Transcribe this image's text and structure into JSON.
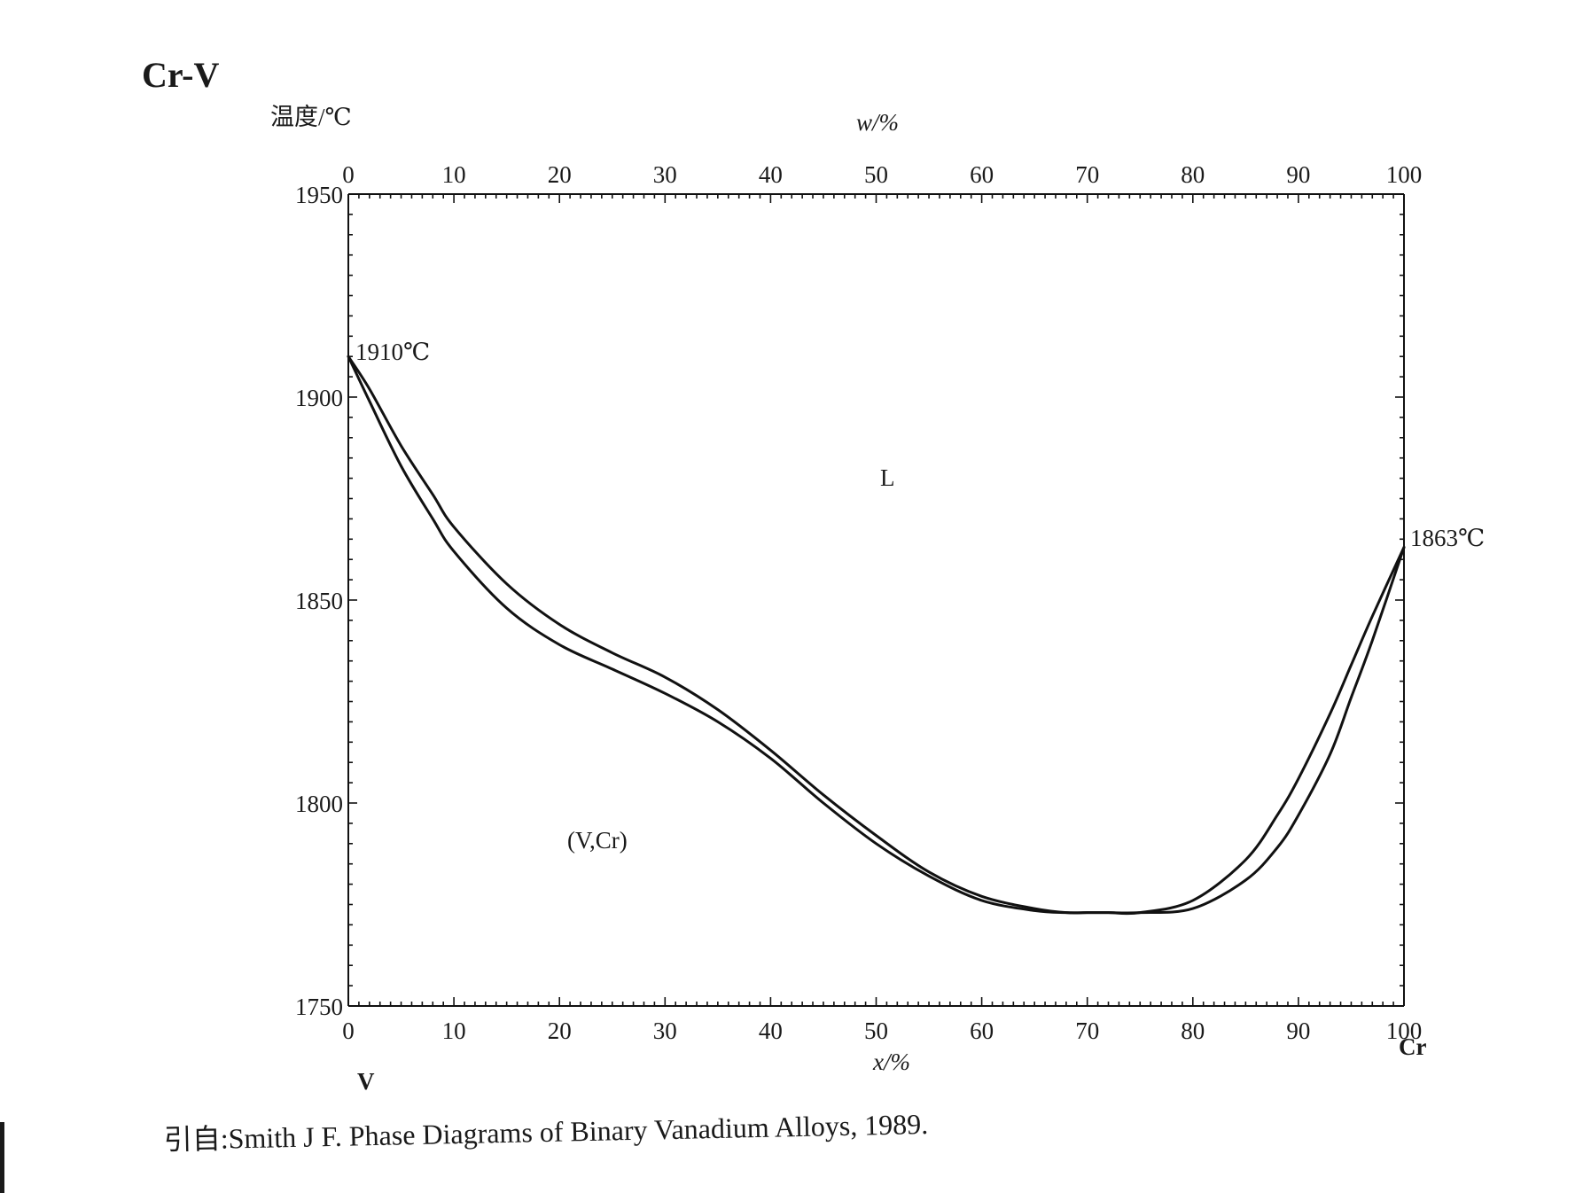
{
  "chart_data": {
    "type": "line",
    "title": "Cr-V",
    "ylabel": "温度/℃",
    "xlabel": "x/%",
    "top_xlabel": "w/%",
    "x_start_element": "V",
    "x_end_element": "Cr",
    "xlim": [
      0,
      100
    ],
    "ylim": [
      1750,
      1950
    ],
    "x_ticks": [
      0,
      10,
      20,
      30,
      40,
      50,
      60,
      70,
      80,
      90,
      100
    ],
    "x_tick_labels": [
      "0",
      "10",
      "20",
      "30",
      "40",
      "50",
      "60",
      "70",
      "80",
      "90",
      "100"
    ],
    "top_x_tick_labels": [
      "0",
      "10",
      "20",
      "30",
      "40",
      "50",
      "60",
      "70",
      "80",
      "90",
      "100"
    ],
    "y_ticks": [
      1750,
      1800,
      1850,
      1900,
      1950
    ],
    "y_tick_labels": [
      "1750",
      "1800",
      "1850",
      "1900",
      "1950"
    ],
    "grid": false,
    "series": [
      {
        "x": [
          0,
          2,
          5,
          8,
          10,
          15,
          20,
          25,
          30,
          35,
          40,
          45,
          50,
          55,
          60,
          65,
          68,
          70,
          72,
          75,
          80,
          85,
          88,
          90,
          93,
          95,
          97,
          100
        ],
        "y": [
          1910,
          1902,
          1888,
          1876,
          1868,
          1854,
          1844,
          1837,
          1831,
          1823,
          1813,
          1802,
          1792,
          1783,
          1777,
          1774,
          1773,
          1773,
          1773,
          1773,
          1776,
          1786,
          1797,
          1806,
          1822,
          1834,
          1846,
          1863
        ]
      },
      {
        "x": [
          0,
          2,
          5,
          8,
          10,
          15,
          20,
          25,
          30,
          35,
          40,
          45,
          50,
          55,
          60,
          65,
          68,
          70,
          72,
          75,
          80,
          85,
          88,
          90,
          93,
          95,
          97,
          100
        ],
        "y": [
          1910,
          1899,
          1883,
          1870,
          1862,
          1848,
          1839,
          1833,
          1827,
          1820,
          1811,
          1800,
          1790,
          1782,
          1776,
          1773.5,
          1773,
          1773,
          1773,
          1773,
          1774,
          1781,
          1789,
          1797,
          1812,
          1826,
          1840,
          1863
        ]
      }
    ],
    "annotations": [
      {
        "text": "1910℃",
        "x": 0,
        "y": 1910
      },
      {
        "text": "1863℃",
        "x": 100,
        "y": 1863
      },
      {
        "text": "L",
        "x": 51,
        "y": 1880
      },
      {
        "text": "(V,Cr)",
        "x": 23,
        "y": 1790
      }
    ]
  },
  "source": "引自:Smith J F.  Phase Diagrams of Binary Vanadium Alloys, 1989."
}
